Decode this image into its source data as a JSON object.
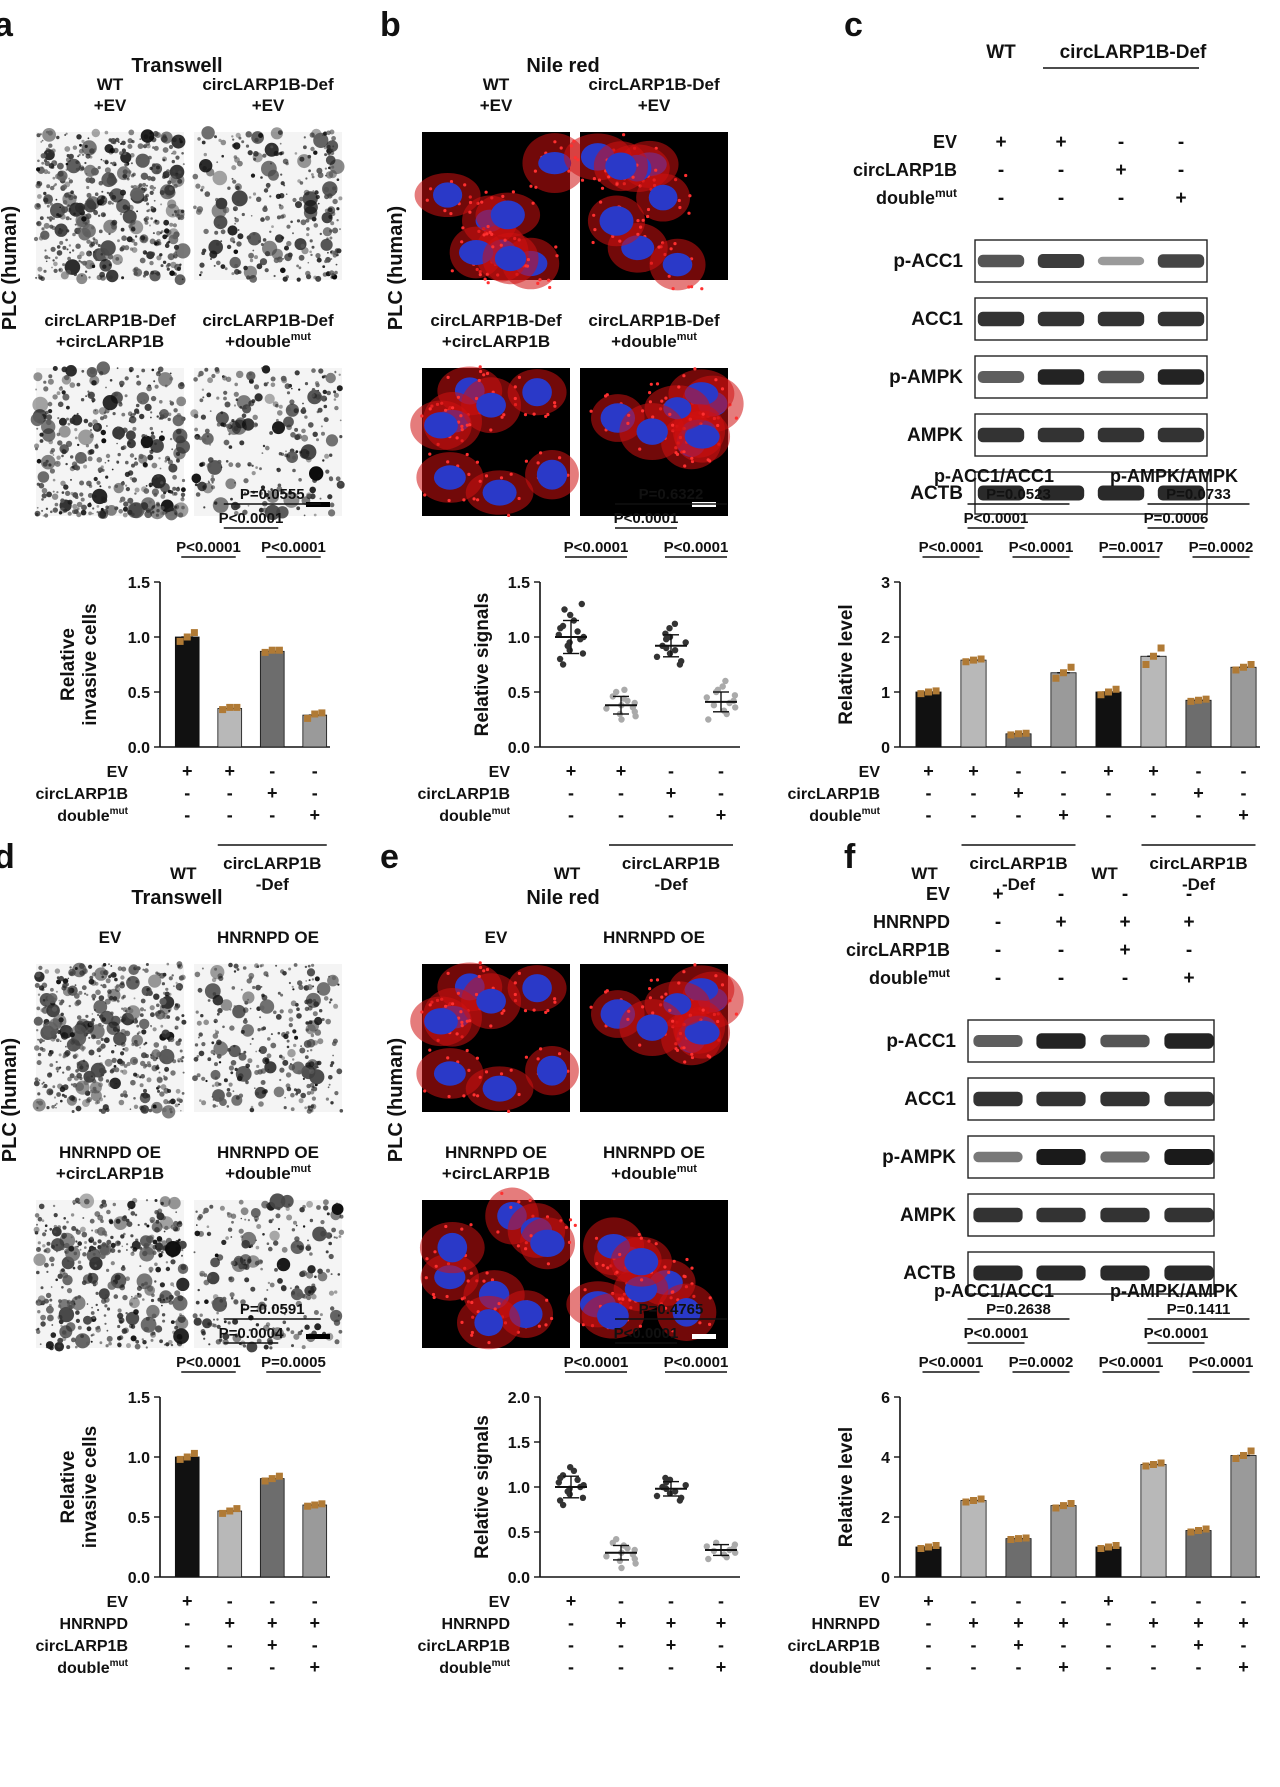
{
  "figure": {
    "colors": {
      "bar_black": "#111111",
      "bar_light": "#b8b8b8",
      "bar_dark": "#6d6d6d",
      "bar_mid": "#9a9a9a",
      "dot": "#b07a35",
      "scatter_dark": "#333333",
      "scatter_light": "#aaaaaa",
      "nucleus": "#2a39c8",
      "lipid": "#d01010",
      "band": "#1a1a1a"
    },
    "panels": [
      {
        "letter": "a",
        "title": "Transwell",
        "ylabel_side": "PLC (human)",
        "images": [
          {
            "label": "WT\n+EV"
          },
          {
            "label": "circLARP1B-Def\n+EV"
          },
          {
            "label": "circLARP1B-Def\n+circLARP1B"
          },
          {
            "label": "circLARP1B-Def\n+double^mut"
          }
        ]
      },
      {
        "letter": "b",
        "title": "Nile red",
        "ylabel_side": "PLC (human)",
        "images": [
          {
            "label": "WT\n+EV"
          },
          {
            "label": "circLARP1B-Def\n+EV"
          },
          {
            "label": "circLARP1B-Def\n+circLARP1B"
          },
          {
            "label": "circLARP1B-Def\n+double^mut"
          }
        ]
      },
      {
        "letter": "c",
        "blot_header": {
          "wt": "WT",
          "def": "circLARP1B-Def"
        },
        "blot_conditions": [
          {
            "name": "EV",
            "values": [
              "+",
              "+",
              "-",
              "-"
            ]
          },
          {
            "name": "circLARP1B",
            "values": [
              "-",
              "-",
              "+",
              "-"
            ]
          },
          {
            "name": "double^mut",
            "values": [
              "-",
              "-",
              "-",
              "+"
            ]
          }
        ],
        "blots": [
          {
            "name": "p-ACC1",
            "intensity": [
              0.65,
              0.8,
              0.25,
              0.75
            ]
          },
          {
            "name": "ACC1",
            "intensity": [
              0.85,
              0.85,
              0.85,
              0.85
            ]
          },
          {
            "name": "p-AMPK",
            "intensity": [
              0.6,
              0.95,
              0.65,
              0.95
            ]
          },
          {
            "name": "AMPK",
            "intensity": [
              0.85,
              0.85,
              0.85,
              0.85
            ]
          },
          {
            "name": "ACTB",
            "intensity": [
              0.9,
              0.9,
              0.9,
              0.9
            ]
          }
        ]
      },
      {
        "letter": "d",
        "title": "Transwell",
        "ylabel_side": "PLC (human)",
        "images": [
          {
            "label": "EV"
          },
          {
            "label": "HNRNPD OE"
          },
          {
            "label": "HNRNPD OE\n+circLARP1B"
          },
          {
            "label": "HNRNPD OE\n+double^mut"
          }
        ]
      },
      {
        "letter": "e",
        "title": "Nile red",
        "ylabel_side": "PLC (human)",
        "images": [
          {
            "label": "EV"
          },
          {
            "label": "HNRNPD OE"
          },
          {
            "label": "HNRNPD OE\n+circLARP1B"
          },
          {
            "label": "HNRNPD OE\n+double^mut"
          }
        ]
      },
      {
        "letter": "f",
        "blot_conditions": [
          {
            "name": "EV",
            "values": [
              "+",
              "-",
              "-",
              "-"
            ]
          },
          {
            "name": "HNRNPD",
            "values": [
              "-",
              "+",
              "+",
              "+"
            ]
          },
          {
            "name": "circLARP1B",
            "values": [
              "-",
              "-",
              "+",
              "-"
            ]
          },
          {
            "name": "double^mut",
            "values": [
              "-",
              "-",
              "-",
              "+"
            ]
          }
        ],
        "blots": [
          {
            "name": "p-ACC1",
            "intensity": [
              0.6,
              0.95,
              0.65,
              0.95
            ]
          },
          {
            "name": "ACC1",
            "intensity": [
              0.85,
              0.85,
              0.85,
              0.85
            ]
          },
          {
            "name": "p-AMPK",
            "intensity": [
              0.45,
              1.0,
              0.5,
              1.0
            ]
          },
          {
            "name": "AMPK",
            "intensity": [
              0.85,
              0.85,
              0.85,
              0.85
            ]
          },
          {
            "name": "ACTB",
            "intensity": [
              0.9,
              0.9,
              0.9,
              0.9
            ]
          }
        ]
      }
    ]
  },
  "chart_data": [
    {
      "id": "a-bar",
      "type": "bar",
      "title": "",
      "ylabel": "Relative\ninvasive cells",
      "ylim": [
        0,
        1.5
      ],
      "yticks": [
        0.0,
        0.5,
        1.0,
        1.5
      ],
      "values": [
        1.0,
        0.35,
        0.87,
        0.29
      ],
      "points": [
        [
          0.96,
          1.0,
          1.04
        ],
        [
          0.34,
          0.36,
          0.36
        ],
        [
          0.86,
          0.88,
          0.88
        ],
        [
          0.26,
          0.3,
          0.31
        ]
      ],
      "colors": [
        "bar_black",
        "bar_light",
        "bar_dark",
        "bar_mid"
      ],
      "comparisons": [
        {
          "a": 0,
          "b": 1,
          "label": "P<0.0001"
        },
        {
          "a": 1,
          "b": 2,
          "label": "P<0.0001"
        },
        {
          "a": 2,
          "b": 3,
          "label": "P<0.0001"
        },
        {
          "a": 1,
          "b": 3,
          "label": "P=0.0555"
        }
      ],
      "conditions": [
        {
          "name": "EV",
          "values": [
            "+",
            "+",
            "-",
            "-"
          ]
        },
        {
          "name": "circLARP1B",
          "values": [
            "-",
            "-",
            "+",
            "-"
          ]
        },
        {
          "name": "double^mut",
          "values": [
            "-",
            "-",
            "-",
            "+"
          ]
        }
      ],
      "groups": [
        {
          "label": "WT",
          "from": 0,
          "to": 0,
          "line": false
        },
        {
          "label": "circLARP1B\n-Def",
          "from": 1,
          "to": 3,
          "line": true
        }
      ]
    },
    {
      "id": "b-scatter",
      "type": "scatter",
      "title": "",
      "ylabel": "Relative signals",
      "ylim": [
        0,
        1.5
      ],
      "yticks": [
        0.0,
        0.5,
        1.0,
        1.5
      ],
      "means": [
        1.0,
        0.38,
        0.92,
        0.41
      ],
      "sds": [
        0.15,
        0.08,
        0.1,
        0.09
      ],
      "values": [
        [
          0.75,
          0.8,
          0.85,
          0.88,
          0.92,
          0.95,
          0.98,
          1.0,
          1.02,
          1.05,
          1.08,
          1.1,
          1.15,
          1.2,
          1.25,
          1.3
        ],
        [
          0.25,
          0.28,
          0.3,
          0.32,
          0.35,
          0.36,
          0.38,
          0.4,
          0.42,
          0.44,
          0.46,
          0.5,
          0.52
        ],
        [
          0.75,
          0.78,
          0.82,
          0.85,
          0.88,
          0.9,
          0.92,
          0.95,
          0.98,
          1.0,
          1.03,
          1.08,
          1.12
        ],
        [
          0.25,
          0.3,
          0.33,
          0.36,
          0.38,
          0.4,
          0.42,
          0.45,
          0.47,
          0.5,
          0.52,
          0.55,
          0.6
        ]
      ],
      "colors": [
        "scatter_dark",
        "scatter_light",
        "scatter_dark",
        "scatter_light"
      ],
      "comparisons": [
        {
          "a": 0,
          "b": 1,
          "label": "P<0.0001"
        },
        {
          "a": 1,
          "b": 2,
          "label": "P<0.0001"
        },
        {
          "a": 2,
          "b": 3,
          "label": "P<0.0001"
        },
        {
          "a": 1,
          "b": 3,
          "label": "P=0.6322"
        }
      ],
      "conditions": [
        {
          "name": "EV",
          "values": [
            "+",
            "+",
            "-",
            "-"
          ]
        },
        {
          "name": "circLARP1B",
          "values": [
            "-",
            "-",
            "+",
            "-"
          ]
        },
        {
          "name": "double^mut",
          "values": [
            "-",
            "-",
            "-",
            "+"
          ]
        }
      ],
      "groups": [
        {
          "label": "WT",
          "from": 0,
          "to": 0,
          "line": false
        },
        {
          "label": "circLARP1B\n-Def",
          "from": 1,
          "to": 3,
          "line": true
        }
      ]
    },
    {
      "id": "c-bar",
      "type": "bar",
      "title": "",
      "ylabel": "Relative level",
      "ylim": [
        0,
        3
      ],
      "yticks": [
        0,
        1,
        2,
        3
      ],
      "subcharts": [
        {
          "title": "p-ACC1/ACC1",
          "values": [
            1.0,
            1.58,
            0.24,
            1.35
          ],
          "points": [
            [
              0.97,
              1.0,
              1.02
            ],
            [
              1.55,
              1.58,
              1.6
            ],
            [
              0.22,
              0.24,
              0.25
            ],
            [
              1.25,
              1.35,
              1.45
            ]
          ],
          "comparisons": [
            {
              "a": 0,
              "b": 1,
              "label": "P<0.0001"
            },
            {
              "a": 1,
              "b": 2,
              "label": "P<0.0001"
            },
            {
              "a": 2,
              "b": 3,
              "label": "P<0.0001"
            },
            {
              "a": 1,
              "b": 3,
              "label": "P=0.0523"
            }
          ]
        },
        {
          "title": "p-AMPK/AMPK",
          "values": [
            1.0,
            1.65,
            0.85,
            1.45
          ],
          "points": [
            [
              0.95,
              1.0,
              1.05
            ],
            [
              1.5,
              1.65,
              1.8
            ],
            [
              0.83,
              0.85,
              0.87
            ],
            [
              1.4,
              1.45,
              1.5
            ]
          ],
          "comparisons": [
            {
              "a": 0,
              "b": 1,
              "label": "P=0.0017"
            },
            {
              "a": 1,
              "b": 2,
              "label": "P=0.0006"
            },
            {
              "a": 2,
              "b": 3,
              "label": "P=0.0002"
            },
            {
              "a": 1,
              "b": 3,
              "label": "P=0.0733"
            }
          ]
        }
      ],
      "colors": [
        "bar_black",
        "bar_light",
        "bar_dark",
        "bar_mid"
      ],
      "conditions": [
        {
          "name": "EV",
          "values": [
            "+",
            "+",
            "-",
            "-"
          ]
        },
        {
          "name": "circLARP1B",
          "values": [
            "-",
            "-",
            "+",
            "-"
          ]
        },
        {
          "name": "double^mut",
          "values": [
            "-",
            "-",
            "-",
            "+"
          ]
        }
      ],
      "groups": [
        {
          "label": "WT",
          "from": 0,
          "to": 0,
          "line": false
        },
        {
          "label": "circLARP1B\n-Def",
          "from": 1,
          "to": 3,
          "line": true
        }
      ]
    },
    {
      "id": "d-bar",
      "type": "bar",
      "title": "",
      "ylabel": "Relative\ninvasive cells",
      "ylim": [
        0,
        1.5
      ],
      "yticks": [
        0.0,
        0.5,
        1.0,
        1.5
      ],
      "values": [
        1.0,
        0.55,
        0.82,
        0.6
      ],
      "points": [
        [
          0.98,
          1.0,
          1.03
        ],
        [
          0.53,
          0.55,
          0.57
        ],
        [
          0.8,
          0.82,
          0.84
        ],
        [
          0.59,
          0.6,
          0.61
        ]
      ],
      "colors": [
        "bar_black",
        "bar_light",
        "bar_dark",
        "bar_mid"
      ],
      "comparisons": [
        {
          "a": 0,
          "b": 1,
          "label": "P<0.0001"
        },
        {
          "a": 1,
          "b": 2,
          "label": "P=0.0004"
        },
        {
          "a": 2,
          "b": 3,
          "label": "P=0.0005"
        },
        {
          "a": 1,
          "b": 3,
          "label": "P=0.0591"
        }
      ],
      "conditions": [
        {
          "name": "EV",
          "values": [
            "+",
            "-",
            "-",
            "-"
          ]
        },
        {
          "name": "HNRNPD",
          "values": [
            "-",
            "+",
            "+",
            "+"
          ]
        },
        {
          "name": "circLARP1B",
          "values": [
            "-",
            "-",
            "+",
            "-"
          ]
        },
        {
          "name": "double^mut",
          "values": [
            "-",
            "-",
            "-",
            "+"
          ]
        }
      ]
    },
    {
      "id": "e-scatter",
      "type": "scatter",
      "title": "",
      "ylabel": "Relative signals",
      "ylim": [
        0,
        2.0
      ],
      "yticks": [
        0.0,
        0.5,
        1.0,
        1.5,
        2.0
      ],
      "means": [
        1.0,
        0.27,
        0.98,
        0.3
      ],
      "sds": [
        0.12,
        0.08,
        0.08,
        0.06
      ],
      "values": [
        [
          0.8,
          0.85,
          0.88,
          0.92,
          0.95,
          0.98,
          1.0,
          1.02,
          1.05,
          1.08,
          1.1,
          1.13,
          1.18,
          1.22
        ],
        [
          0.1,
          0.15,
          0.18,
          0.2,
          0.23,
          0.25,
          0.27,
          0.3,
          0.32,
          0.35,
          0.38,
          0.42
        ],
        [
          0.85,
          0.88,
          0.9,
          0.93,
          0.95,
          0.98,
          1.0,
          1.02,
          1.05,
          1.08,
          1.1
        ],
        [
          0.2,
          0.22,
          0.25,
          0.27,
          0.29,
          0.3,
          0.32,
          0.34,
          0.36,
          0.38
        ]
      ],
      "colors": [
        "scatter_dark",
        "scatter_light",
        "scatter_dark",
        "scatter_light"
      ],
      "comparisons": [
        {
          "a": 0,
          "b": 1,
          "label": "P<0.0001"
        },
        {
          "a": 1,
          "b": 2,
          "label": "P<0.0001"
        },
        {
          "a": 2,
          "b": 3,
          "label": "P<0.0001"
        },
        {
          "a": 1,
          "b": 3,
          "label": "P=0.4765"
        }
      ],
      "conditions": [
        {
          "name": "EV",
          "values": [
            "+",
            "-",
            "-",
            "-"
          ]
        },
        {
          "name": "HNRNPD",
          "values": [
            "-",
            "+",
            "+",
            "+"
          ]
        },
        {
          "name": "circLARP1B",
          "values": [
            "-",
            "-",
            "+",
            "-"
          ]
        },
        {
          "name": "double^mut",
          "values": [
            "-",
            "-",
            "-",
            "+"
          ]
        }
      ]
    },
    {
      "id": "f-bar",
      "type": "bar",
      "title": "",
      "ylabel": "Relative level",
      "ylim": [
        0,
        6
      ],
      "yticks": [
        0,
        2,
        4,
        6
      ],
      "subcharts": [
        {
          "title": "p-ACC1/ACC1",
          "values": [
            1.0,
            2.55,
            1.28,
            2.38
          ],
          "points": [
            [
              0.95,
              1.0,
              1.05
            ],
            [
              2.5,
              2.55,
              2.6
            ],
            [
              1.25,
              1.28,
              1.3
            ],
            [
              2.3,
              2.38,
              2.45
            ]
          ],
          "comparisons": [
            {
              "a": 0,
              "b": 1,
              "label": "P<0.0001"
            },
            {
              "a": 1,
              "b": 2,
              "label": "P<0.0001"
            },
            {
              "a": 2,
              "b": 3,
              "label": "P=0.0002"
            },
            {
              "a": 1,
              "b": 3,
              "label": "P=0.2638"
            }
          ]
        },
        {
          "title": "p-AMPK/AMPK",
          "values": [
            1.0,
            3.75,
            1.55,
            4.05
          ],
          "points": [
            [
              0.95,
              1.0,
              1.05
            ],
            [
              3.7,
              3.75,
              3.8
            ],
            [
              1.5,
              1.55,
              1.6
            ],
            [
              3.95,
              4.05,
              4.2
            ]
          ],
          "comparisons": [
            {
              "a": 0,
              "b": 1,
              "label": "P<0.0001"
            },
            {
              "a": 1,
              "b": 2,
              "label": "P<0.0001"
            },
            {
              "a": 2,
              "b": 3,
              "label": "P<0.0001"
            },
            {
              "a": 1,
              "b": 3,
              "label": "P=0.1411"
            }
          ]
        }
      ],
      "colors": [
        "bar_black",
        "bar_light",
        "bar_dark",
        "bar_mid"
      ],
      "conditions": [
        {
          "name": "EV",
          "values": [
            "+",
            "-",
            "-",
            "-"
          ]
        },
        {
          "name": "HNRNPD",
          "values": [
            "-",
            "+",
            "+",
            "+"
          ]
        },
        {
          "name": "circLARP1B",
          "values": [
            "-",
            "-",
            "+",
            "-"
          ]
        },
        {
          "name": "double^mut",
          "values": [
            "-",
            "-",
            "-",
            "+"
          ]
        }
      ]
    }
  ]
}
